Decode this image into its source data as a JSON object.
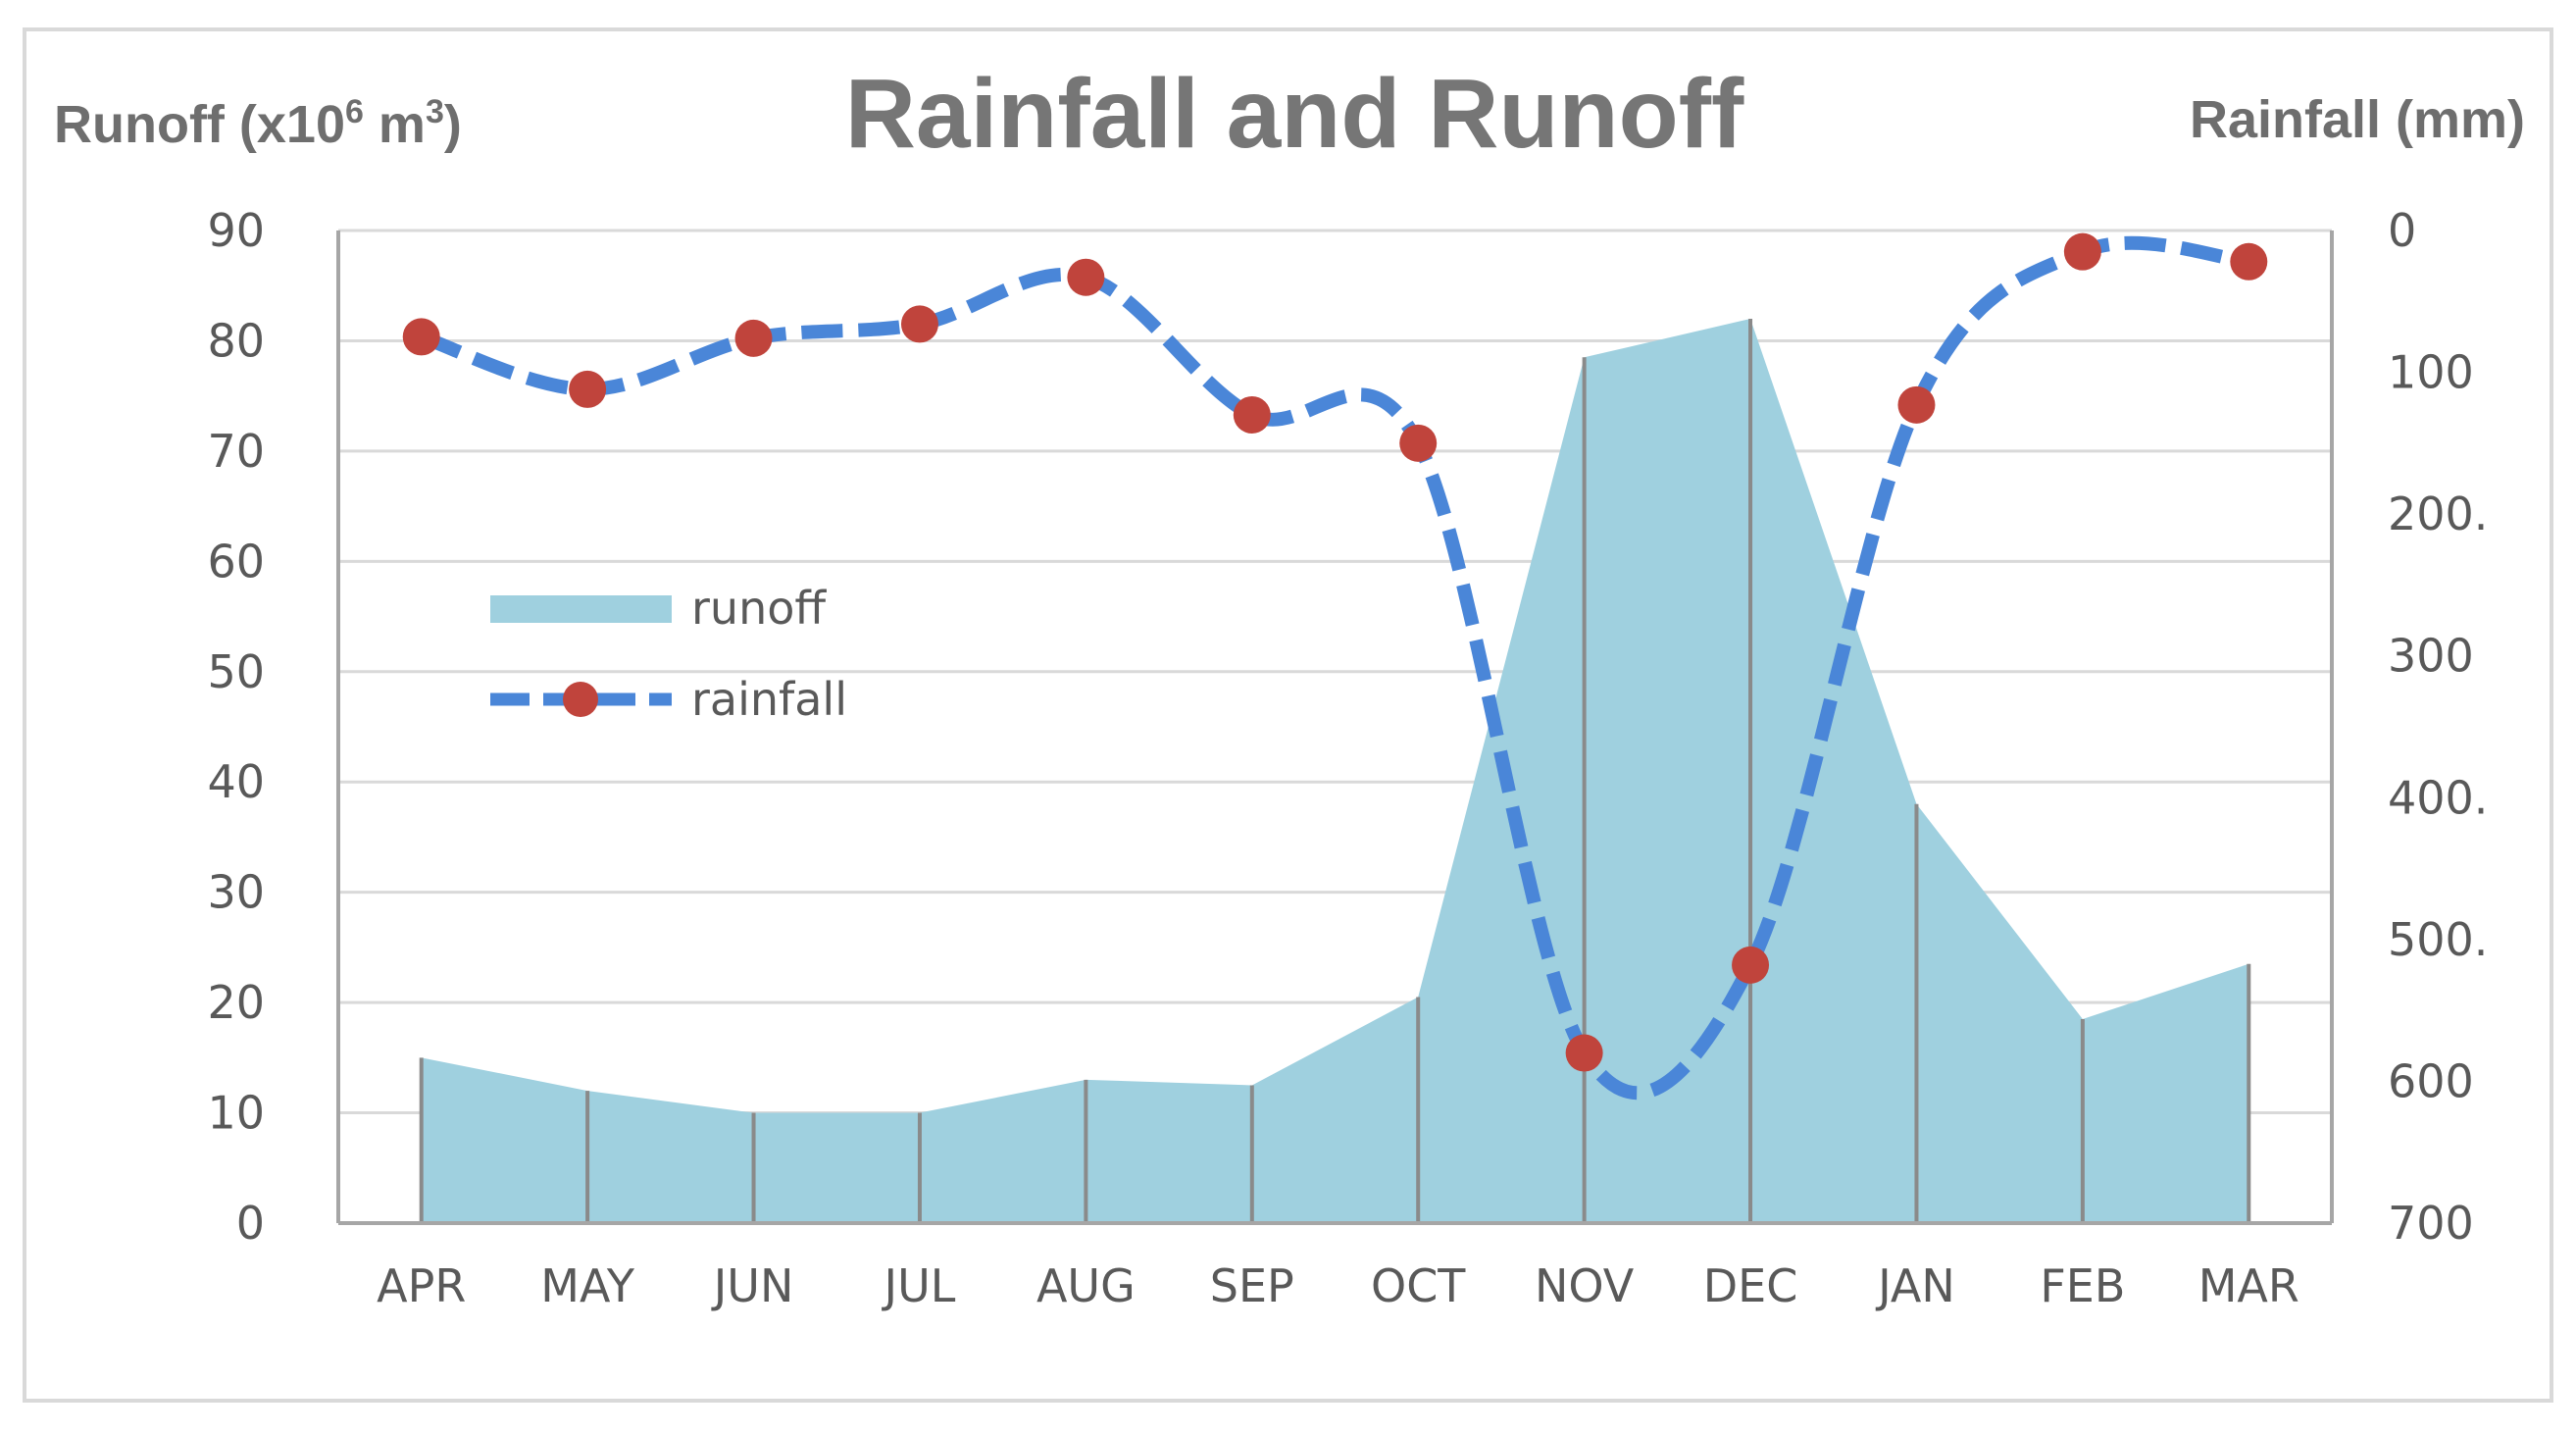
{
  "chart_data": {
    "type": "area",
    "title": "Rainfall and Runoff",
    "left_axis": {
      "label_main": "Runoff (x10",
      "label_sup1": "6",
      "label_mid": " m",
      "label_sup2": "3",
      "label_end": ")",
      "range": [
        0,
        90
      ],
      "ticks": [
        "0",
        "10",
        "20",
        "30",
        "40",
        "50",
        "60",
        "70",
        "80",
        "90"
      ]
    },
    "right_axis": {
      "label": "Rainfall (mm)",
      "range": [
        0,
        700
      ],
      "inverted": true,
      "ticks": [
        "0",
        "100",
        "200.",
        "300",
        "400.",
        "500.",
        "600",
        "700"
      ]
    },
    "categories": [
      "APR",
      "MAY",
      "JUN",
      "JUL",
      "AUG",
      "SEP",
      "OCT",
      "NOV",
      "DEC",
      "JAN",
      "FEB",
      "MAR"
    ],
    "series": [
      {
        "name": "runoff",
        "type": "area",
        "axis": "left",
        "values": [
          15,
          12,
          10,
          10,
          13,
          12.5,
          20.5,
          78.5,
          82,
          38,
          18.5,
          23.5
        ]
      },
      {
        "name": "rainfall",
        "type": "line",
        "axis": "right",
        "values": [
          75,
          112,
          76,
          66,
          33,
          130,
          150,
          580,
          518,
          123,
          15,
          22
        ]
      }
    ],
    "grid": true,
    "legend_position": "upper-left inside plot"
  },
  "colors": {
    "runoff_fill": "#9fd0df",
    "runoff_dividers": "#8a8a8a",
    "rainfall_line": "#4a86d8",
    "rainfall_marker": "#c0443c",
    "grid": "#d9d9d9",
    "axis": "#a6a6a6"
  }
}
